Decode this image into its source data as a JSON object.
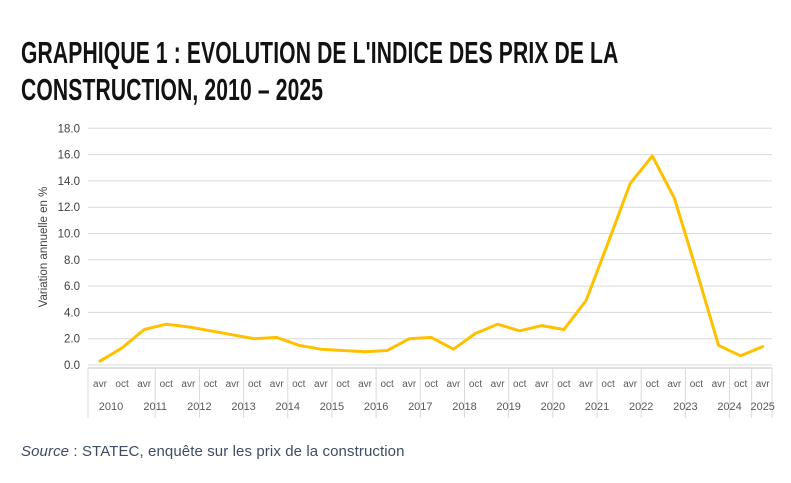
{
  "page": {
    "title_lines": [
      "GRAPHIQUE 1 : EVOLUTION DE L'INDICE DES PRIX DE LA",
      "CONSTRUCTION, 2010 – 2025"
    ],
    "source_label": "Source",
    "source_text": " : STATEC, enquête sur les prix de la construction"
  },
  "chart_data": {
    "type": "line",
    "title": "GRAPHIQUE 1 : EVOLUTION DE L'INDICE DES PRIX DE LA CONSTRUCTION, 2010 – 2025",
    "xlabel": "",
    "ylabel": "Variation annuelle en %",
    "ylim": [
      0,
      18
    ],
    "ytick_labels": [
      "0.0",
      "2.0",
      "4.0",
      "6.0",
      "8.0",
      "10.0",
      "12.0",
      "14.0",
      "16.0",
      "18.0"
    ],
    "grid": true,
    "legend": "none",
    "line_color": "#FFC000",
    "gridline_color": "#d9d9d9",
    "axis_line_color": "#bfbfbf",
    "tick_label_color": "#595959",
    "categories": [
      "avr 2010",
      "oct 2010",
      "avr 2011",
      "oct 2011",
      "avr 2012",
      "oct 2012",
      "avr 2013",
      "oct 2013",
      "avr 2014",
      "oct 2014",
      "avr 2015",
      "oct 2015",
      "avr 2016",
      "oct 2016",
      "avr 2017",
      "oct 2017",
      "avr 2018",
      "oct 2018",
      "avr 2019",
      "oct 2019",
      "avr 2020",
      "oct 2020",
      "avr 2021",
      "oct 2021",
      "avr 2022",
      "oct 2022",
      "avr 2023",
      "oct 2023",
      "avr 2024",
      "oct 2024",
      "avr 2025"
    ],
    "values": [
      0.3,
      1.3,
      2.7,
      3.1,
      2.9,
      2.6,
      2.3,
      2.0,
      2.1,
      1.5,
      1.2,
      1.1,
      1.0,
      1.1,
      2.0,
      2.1,
      1.2,
      2.4,
      3.1,
      2.6,
      3.0,
      2.7,
      4.9,
      9.3,
      13.8,
      15.9,
      12.7,
      7.2,
      1.5,
      0.7,
      1.4
    ],
    "source": "Source : STATEC, enquête sur les prix de la construction"
  }
}
